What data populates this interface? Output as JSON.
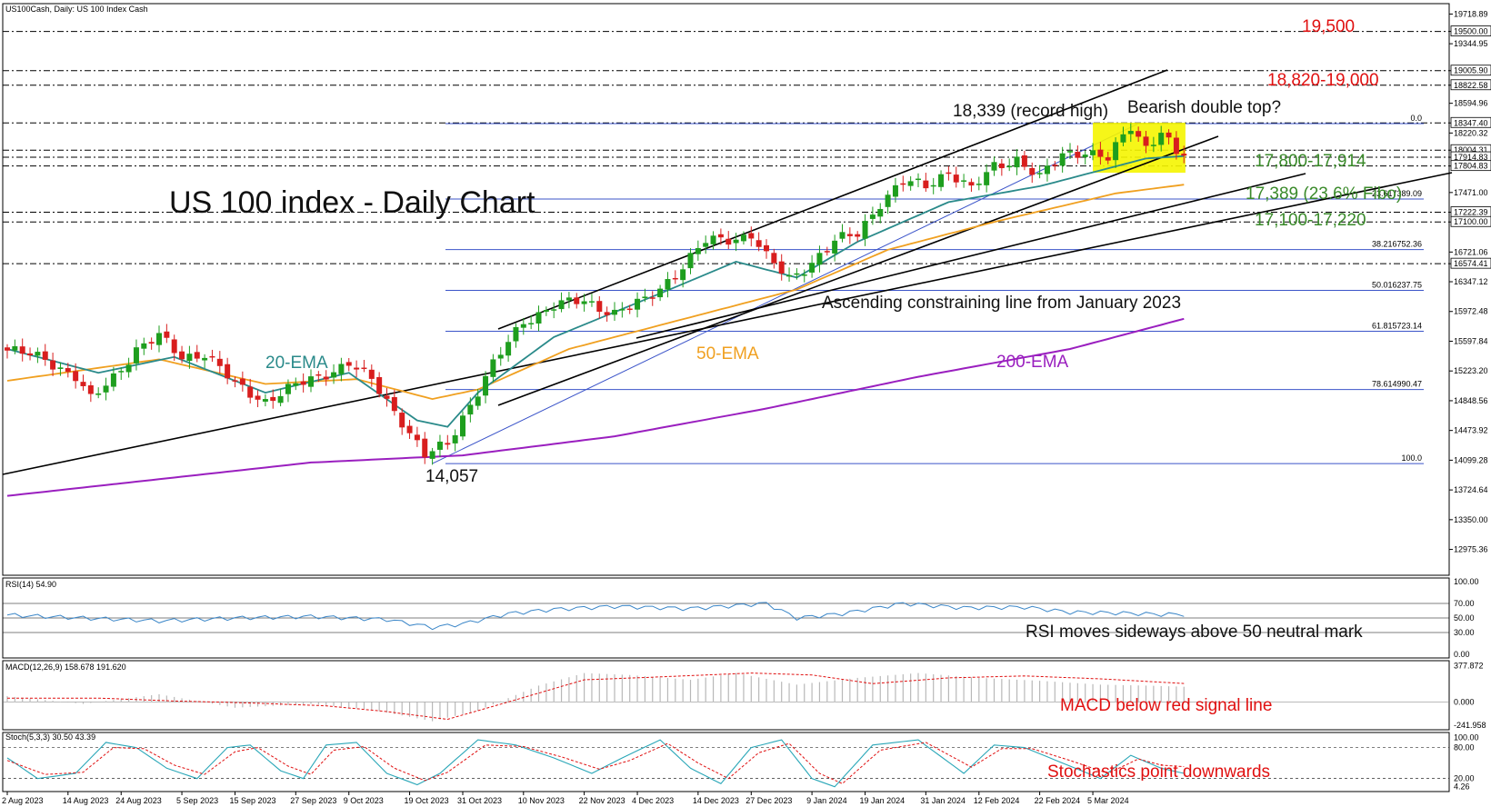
{
  "chart_data": {
    "type": "candlestick",
    "symbol_header": "US100Cash, Daily:  US 100 Index Cash",
    "title": "US 100 index - Daily Chart",
    "ylim": [
      12650,
      19850
    ],
    "price_axis_labels": [
      "19718.89",
      "19500.00",
      "19344.95",
      "19005.90",
      "18822.58",
      "18594.96",
      "18347.40",
      "18220.32",
      "18004.31",
      "17914.83",
      "17804.83",
      "17471.00",
      "17222.39",
      "17100.00",
      "16721.06",
      "16574.41",
      "16347.12",
      "15972.48",
      "15597.84",
      "15223.20",
      "14848.56",
      "14473.92",
      "14099.28",
      "13724.64",
      "13350.00",
      "12975.36"
    ],
    "highlighted_axis_labels": [
      "19500.00",
      "19005.90",
      "18822.58",
      "18347.40",
      "18004.31",
      "17914.83",
      "17804.83",
      "17222.39",
      "17100.00",
      "16574.41"
    ],
    "dates": [
      "2 Aug 2023",
      "14 Aug 2023",
      "24 Aug 2023",
      "5 Sep 2023",
      "15 Sep 2023",
      "27 Sep 2023",
      "9 Oct 2023",
      "19 Oct 2023",
      "31 Oct 2023",
      "10 Nov 2023",
      "22 Nov 2023",
      "4 Dec 2023",
      "14 Dec 2023",
      "27 Dec 2023",
      "9 Jan 2024",
      "19 Jan 2024",
      "31 Jan 2024",
      "12 Feb 2024",
      "22 Feb 2024",
      "5 Mar 2024"
    ],
    "close_anchors": [
      [
        0,
        15480
      ],
      [
        5,
        15380
      ],
      [
        9,
        15150
      ],
      [
        11,
        14850
      ],
      [
        14,
        15150
      ],
      [
        17,
        15500
      ],
      [
        20,
        15650
      ],
      [
        23,
        15400
      ],
      [
        26,
        15450
      ],
      [
        30,
        15050
      ],
      [
        34,
        14850
      ],
      [
        38,
        15030
      ],
      [
        42,
        15200
      ],
      [
        45,
        15320
      ],
      [
        48,
        15100
      ],
      [
        52,
        14600
      ],
      [
        55,
        14150
      ],
      [
        58,
        14300
      ],
      [
        60,
        14650
      ],
      [
        64,
        15300
      ],
      [
        68,
        15850
      ],
      [
        72,
        16050
      ],
      [
        76,
        16100
      ],
      [
        80,
        15960
      ],
      [
        84,
        16100
      ],
      [
        88,
        16450
      ],
      [
        92,
        16850
      ],
      [
        96,
        16900
      ],
      [
        98,
        16950
      ],
      [
        100,
        16650
      ],
      [
        103,
        16380
      ],
      [
        106,
        16600
      ],
      [
        109,
        16850
      ],
      [
        112,
        16950
      ],
      [
        115,
        17350
      ],
      [
        118,
        17600
      ],
      [
        121,
        17550
      ],
      [
        124,
        17750
      ],
      [
        127,
        17500
      ],
      [
        130,
        17800
      ],
      [
        133,
        17900
      ],
      [
        136,
        17650
      ],
      [
        139,
        17950
      ],
      [
        142,
        18000
      ],
      [
        145,
        17890
      ],
      [
        148,
        18300
      ],
      [
        150,
        18050
      ],
      [
        152,
        18250
      ],
      [
        154,
        17950
      ],
      [
        155,
        17940
      ]
    ],
    "ema_20_anchors": [
      [
        0,
        15500
      ],
      [
        12,
        15200
      ],
      [
        22,
        15400
      ],
      [
        34,
        14950
      ],
      [
        45,
        15200
      ],
      [
        54,
        14600
      ],
      [
        58,
        14520
      ],
      [
        62,
        14950
      ],
      [
        72,
        15650
      ],
      [
        86,
        16200
      ],
      [
        96,
        16600
      ],
      [
        104,
        16400
      ],
      [
        112,
        16850
      ],
      [
        124,
        17350
      ],
      [
        136,
        17550
      ],
      [
        150,
        17900
      ],
      [
        155,
        17930
      ]
    ],
    "ema_50_anchors": [
      [
        0,
        15100
      ],
      [
        20,
        15370
      ],
      [
        34,
        15060
      ],
      [
        46,
        15120
      ],
      [
        56,
        14870
      ],
      [
        62,
        14990
      ],
      [
        74,
        15500
      ],
      [
        90,
        15900
      ],
      [
        104,
        16250
      ],
      [
        116,
        16750
      ],
      [
        130,
        17100
      ],
      [
        146,
        17460
      ],
      [
        155,
        17570
      ]
    ],
    "ema_200_anchors": [
      [
        0,
        13650
      ],
      [
        40,
        14070
      ],
      [
        60,
        14160
      ],
      [
        80,
        14400
      ],
      [
        100,
        14750
      ],
      [
        120,
        15150
      ],
      [
        140,
        15500
      ],
      [
        155,
        15880
      ]
    ],
    "fibonacci_levels": [
      {
        "label": "0.0",
        "price": 18339
      },
      {
        "label": "23.617389.09",
        "price": 17389
      },
      {
        "label": "38.216752.36",
        "price": 16752
      },
      {
        "label": "50.016237.75",
        "price": 16238
      },
      {
        "label": "61.815723.14",
        "price": 15723
      },
      {
        "label": "78.614990.47",
        "price": 14990
      },
      {
        "label": "100.0",
        "price": 14057
      }
    ],
    "key_levels": [
      19500,
      19005.9,
      18822.58,
      18347.4,
      18004.31,
      17914.83,
      17804.83,
      17222.39,
      17100,
      16574.41
    ],
    "annotations": {
      "level_19500": "19,500",
      "level_18820_19000": "18,820-19,000",
      "record_high": "18,339 (record high)",
      "double_top": "Bearish double top?",
      "level_17800_17914": "17,800-17,914",
      "level_17389": "17,389 (23.6% Fibo)",
      "level_17100_17220": "17,100-17,220",
      "ascending_line": "Ascending constraining line from January 2023",
      "ema20": "20-EMA",
      "ema50": "50-EMA",
      "ema200": "200-EMA",
      "low": "14,057"
    },
    "rsi": {
      "header": "RSI(14) 54.90",
      "value": 54.9,
      "axis_labels": [
        "100.00",
        "70.00",
        "50.00",
        "30.00",
        "0.00"
      ],
      "note": "RSI moves sideways above 50 neutral mark",
      "anchors": [
        [
          0,
          54
        ],
        [
          10,
          50
        ],
        [
          20,
          46
        ],
        [
          30,
          50
        ],
        [
          40,
          52
        ],
        [
          50,
          48
        ],
        [
          56,
          37
        ],
        [
          60,
          42
        ],
        [
          66,
          56
        ],
        [
          72,
          62
        ],
        [
          80,
          66
        ],
        [
          90,
          63
        ],
        [
          100,
          70
        ],
        [
          104,
          50
        ],
        [
          110,
          56
        ],
        [
          118,
          70
        ],
        [
          126,
          64
        ],
        [
          134,
          65
        ],
        [
          140,
          58
        ],
        [
          146,
          57
        ],
        [
          152,
          55
        ],
        [
          155,
          55
        ]
      ]
    },
    "macd": {
      "header": "MACD(12,26,9) 158.678 191.620",
      "axis_labels": [
        "377.872",
        "0.000",
        "-241.958"
      ],
      "note": "MACD below red signal line",
      "hist_anchors": [
        [
          0,
          60
        ],
        [
          10,
          -20
        ],
        [
          20,
          80
        ],
        [
          30,
          -60
        ],
        [
          40,
          -20
        ],
        [
          48,
          -80
        ],
        [
          56,
          -200
        ],
        [
          62,
          -90
        ],
        [
          70,
          170
        ],
        [
          76,
          300
        ],
        [
          82,
          280
        ],
        [
          90,
          230
        ],
        [
          96,
          300
        ],
        [
          104,
          180
        ],
        [
          112,
          250
        ],
        [
          120,
          300
        ],
        [
          128,
          250
        ],
        [
          136,
          220
        ],
        [
          144,
          180
        ],
        [
          150,
          170
        ],
        [
          155,
          158
        ]
      ],
      "signal_anchors": [
        [
          0,
          40
        ],
        [
          12,
          40
        ],
        [
          22,
          10
        ],
        [
          32,
          -10
        ],
        [
          42,
          -40
        ],
        [
          50,
          -100
        ],
        [
          58,
          -180
        ],
        [
          66,
          0
        ],
        [
          76,
          230
        ],
        [
          86,
          260
        ],
        [
          98,
          300
        ],
        [
          106,
          280
        ],
        [
          114,
          190
        ],
        [
          124,
          250
        ],
        [
          134,
          270
        ],
        [
          144,
          240
        ],
        [
          155,
          192
        ]
      ]
    },
    "stochastic": {
      "header": "Stoch(5,3,3) 30.50 43.39",
      "axis_labels": [
        "100.00",
        "80.00",
        "20.00",
        "4.26"
      ],
      "note": "Stochastics point downwards",
      "k_anchors": [
        [
          0,
          60
        ],
        [
          4,
          20
        ],
        [
          9,
          30
        ],
        [
          13,
          90
        ],
        [
          17,
          80
        ],
        [
          21,
          40
        ],
        [
          25,
          20
        ],
        [
          29,
          80
        ],
        [
          32,
          85
        ],
        [
          36,
          35
        ],
        [
          39,
          20
        ],
        [
          42,
          85
        ],
        [
          46,
          90
        ],
        [
          50,
          30
        ],
        [
          54,
          8
        ],
        [
          57,
          30
        ],
        [
          62,
          95
        ],
        [
          67,
          85
        ],
        [
          72,
          60
        ],
        [
          77,
          30
        ],
        [
          81,
          60
        ],
        [
          86,
          95
        ],
        [
          90,
          40
        ],
        [
          94,
          10
        ],
        [
          98,
          80
        ],
        [
          102,
          95
        ],
        [
          106,
          20
        ],
        [
          109,
          4
        ],
        [
          114,
          85
        ],
        [
          120,
          95
        ],
        [
          126,
          30
        ],
        [
          130,
          85
        ],
        [
          134,
          80
        ],
        [
          139,
          50
        ],
        [
          144,
          20
        ],
        [
          148,
          65
        ],
        [
          152,
          40
        ],
        [
          155,
          30
        ]
      ],
      "d_anchors": [
        [
          0,
          55
        ],
        [
          5,
          28
        ],
        [
          10,
          32
        ],
        [
          14,
          80
        ],
        [
          18,
          78
        ],
        [
          22,
          46
        ],
        [
          26,
          28
        ],
        [
          30,
          72
        ],
        [
          33,
          80
        ],
        [
          37,
          44
        ],
        [
          40,
          28
        ],
        [
          43,
          75
        ],
        [
          47,
          82
        ],
        [
          51,
          40
        ],
        [
          55,
          16
        ],
        [
          58,
          32
        ],
        [
          63,
          85
        ],
        [
          68,
          82
        ],
        [
          73,
          62
        ],
        [
          78,
          38
        ],
        [
          82,
          55
        ],
        [
          87,
          88
        ],
        [
          91,
          50
        ],
        [
          95,
          20
        ],
        [
          99,
          70
        ],
        [
          103,
          88
        ],
        [
          107,
          30
        ],
        [
          110,
          10
        ],
        [
          115,
          75
        ],
        [
          121,
          90
        ],
        [
          127,
          42
        ],
        [
          131,
          78
        ],
        [
          135,
          78
        ],
        [
          140,
          55
        ],
        [
          145,
          30
        ],
        [
          149,
          58
        ],
        [
          152,
          46
        ],
        [
          155,
          43
        ]
      ]
    },
    "colors": {
      "bull": "#1e9e1e",
      "bear": "#d81e1e",
      "ema20": "#2a8a8a",
      "ema50": "#f0a020",
      "ema200": "#9a1fbf",
      "fibo": "#3b54c9",
      "red_text": "#e01010",
      "green_text": "#3a8a2a",
      "rsi": "#3a86c8",
      "macd_hist": "#b8b8b8",
      "signal": "#e01010",
      "stoch_k": "#2aa7b8",
      "stoch_d": "#e01010",
      "highlight": "#f5f500"
    }
  }
}
